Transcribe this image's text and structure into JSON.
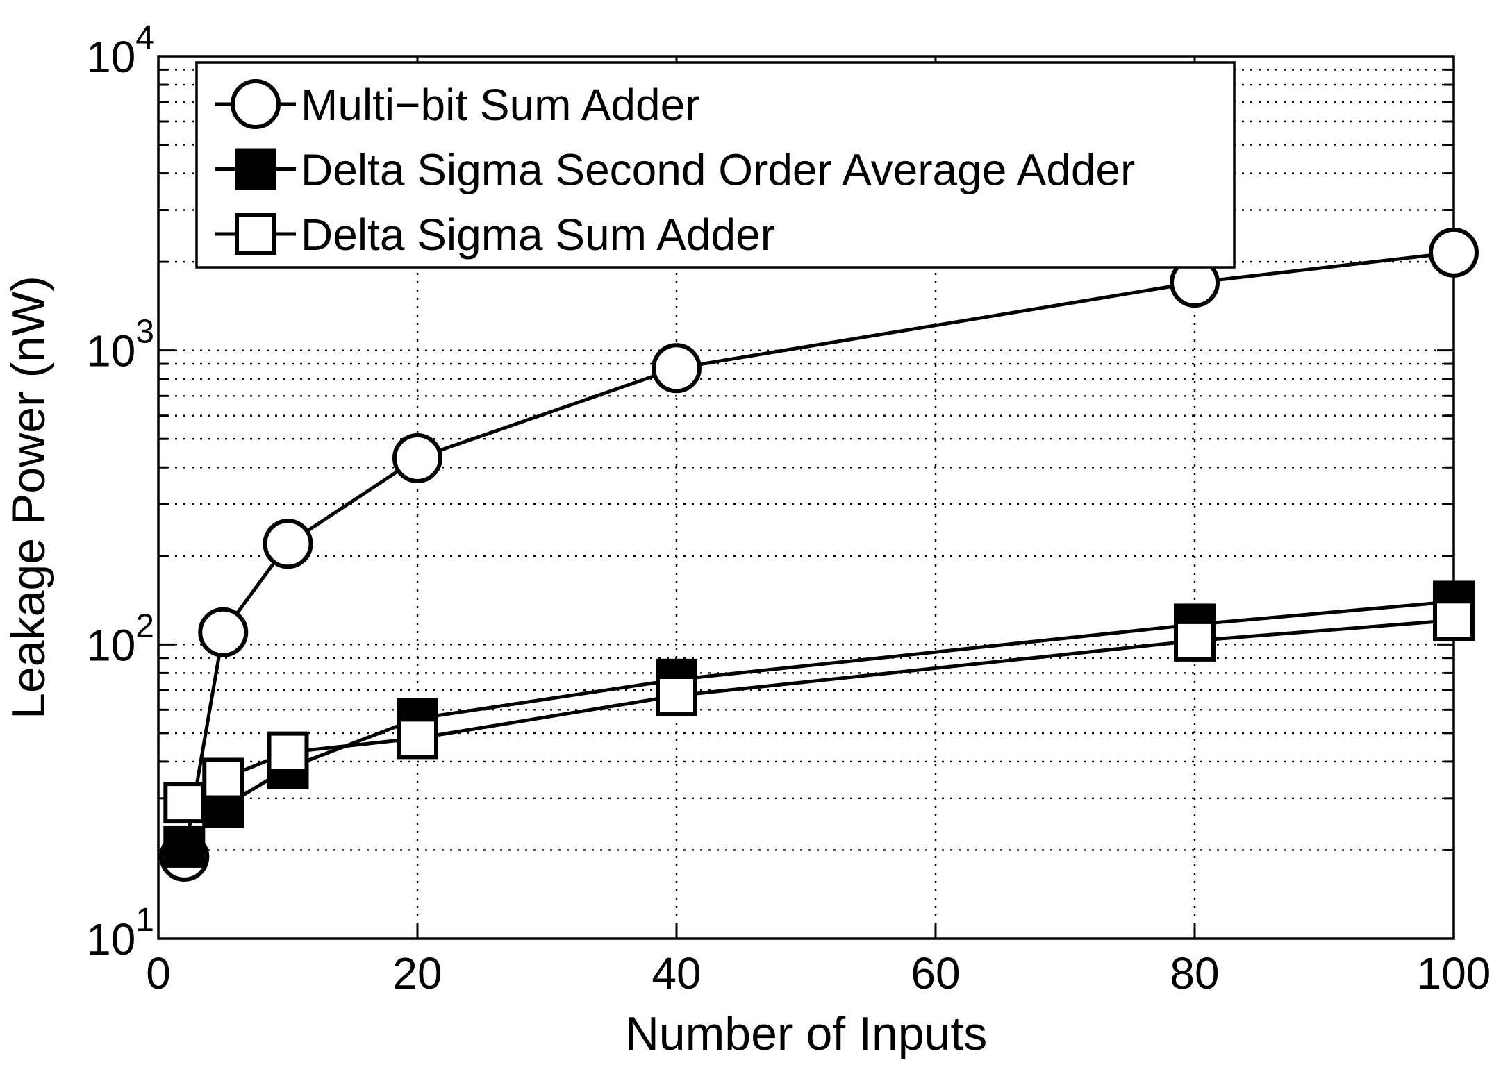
{
  "chart_data": {
    "type": "line",
    "title": "",
    "xlabel": "Number of Inputs",
    "ylabel": "Leakage Power (nW)",
    "x_scale": "linear",
    "y_scale": "log",
    "xlim": [
      0,
      100
    ],
    "ylim": [
      10,
      10000
    ],
    "x_tick_labels": [
      "0",
      "20",
      "40",
      "60",
      "80",
      "100"
    ],
    "x_tick_values": [
      0,
      20,
      40,
      60,
      80,
      100
    ],
    "y_tick_labels": [
      {
        "base": "10",
        "exp": "1",
        "value": 10
      },
      {
        "base": "10",
        "exp": "2",
        "value": 100
      },
      {
        "base": "10",
        "exp": "3",
        "value": 1000
      },
      {
        "base": "10",
        "exp": "4",
        "value": 10000
      }
    ],
    "grid": "dotted-minor-and-major",
    "legend_position": "top-left-inside",
    "x": [
      2,
      5,
      10,
      20,
      40,
      80,
      100
    ],
    "series": [
      {
        "name": "Multi−bit Sum Adder",
        "marker": "circle-open",
        "values": [
          19,
          110,
          220,
          430,
          870,
          1700,
          2150
        ]
      },
      {
        "name": "Delta Sigma Second Order Average Adder",
        "marker": "square-filled",
        "values": [
          20.5,
          28,
          38,
          56,
          76,
          117,
          140
        ]
      },
      {
        "name": "Delta Sigma Sum Adder",
        "marker": "square-open",
        "values": [
          29,
          35,
          43,
          48,
          67,
          103,
          121
        ]
      }
    ],
    "colors": {
      "stroke": "#000000",
      "background": "#ffffff"
    }
  }
}
